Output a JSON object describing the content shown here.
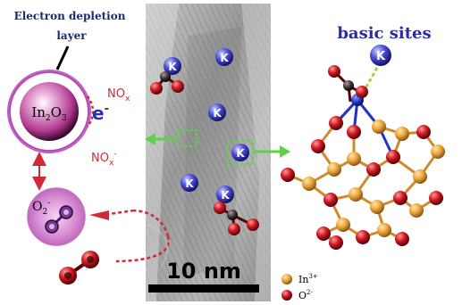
{
  "left": {
    "title_line1": "Electron depletion",
    "title_line2": "layer",
    "sphere_label": "In",
    "sphere_sub1": "2",
    "sphere_mid": "O",
    "sphere_sub2": "3",
    "electron": "e",
    "electron_sup": "-",
    "nox": "NO",
    "nox_sub": "x",
    "noxm": "NO",
    "noxm_sub": "x",
    "noxm_sup": "-",
    "o2": "O",
    "o2_sub": "2",
    "o2_sup": "-"
  },
  "center": {
    "k_label": "K",
    "scale_text": "10 nm"
  },
  "right": {
    "title": "basic sites",
    "k_label": "K",
    "legend": [
      {
        "ion": "In",
        "sup": "3+",
        "color": "#e8a33a"
      },
      {
        "ion": "O",
        "sup": "2-",
        "color": "#c8161e"
      }
    ]
  }
}
